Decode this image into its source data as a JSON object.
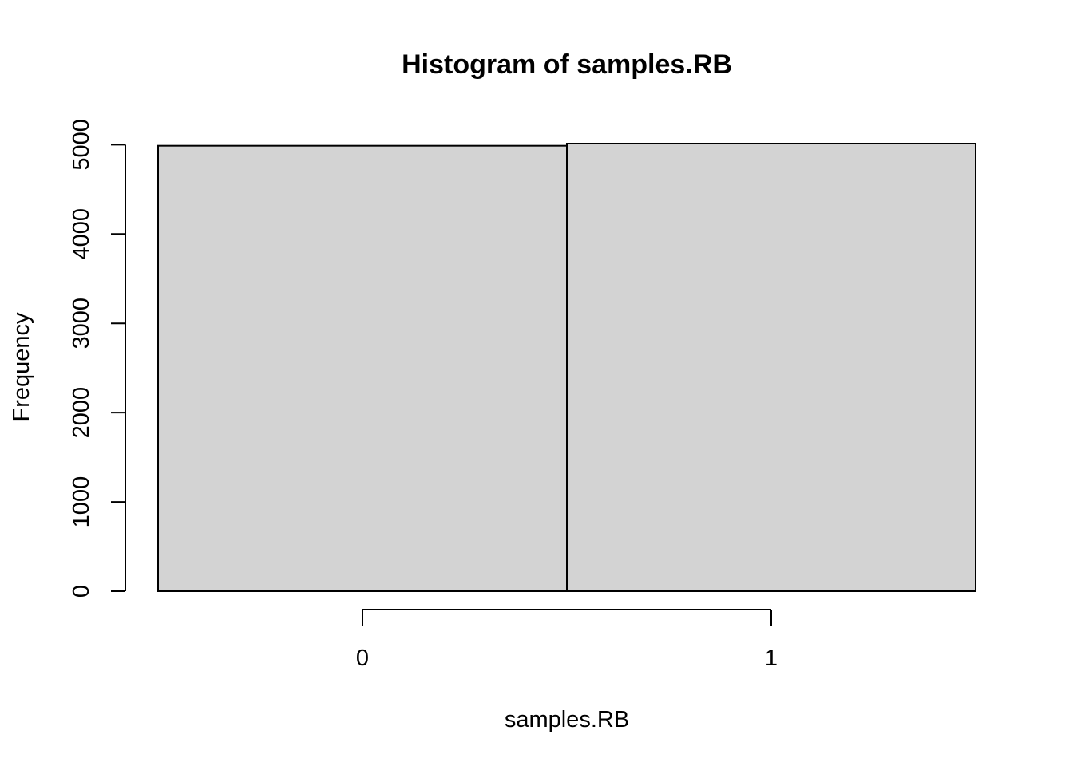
{
  "chart_data": {
    "type": "bar",
    "title": "Histogram of samples.RB",
    "xlabel": "samples.RB",
    "ylabel": "Frequency",
    "bins": [
      {
        "start": -0.5,
        "end": 0.5,
        "value": 4988
      },
      {
        "start": 0.5,
        "end": 1.5,
        "value": 5012
      }
    ],
    "x_ticks": [
      {
        "value": 0,
        "label": "0"
      },
      {
        "value": 1,
        "label": "1"
      }
    ],
    "y_ticks": [
      {
        "value": 0,
        "label": "0"
      },
      {
        "value": 1000,
        "label": "1000"
      },
      {
        "value": 2000,
        "label": "2000"
      },
      {
        "value": 3000,
        "label": "3000"
      },
      {
        "value": 4000,
        "label": "4000"
      },
      {
        "value": 5000,
        "label": "5000"
      }
    ],
    "xlim": [
      -0.5,
      1.5
    ],
    "ylim": [
      0,
      5012
    ],
    "grid": false,
    "bar_color": "#d3d3d3",
    "border_color": "#000000"
  }
}
